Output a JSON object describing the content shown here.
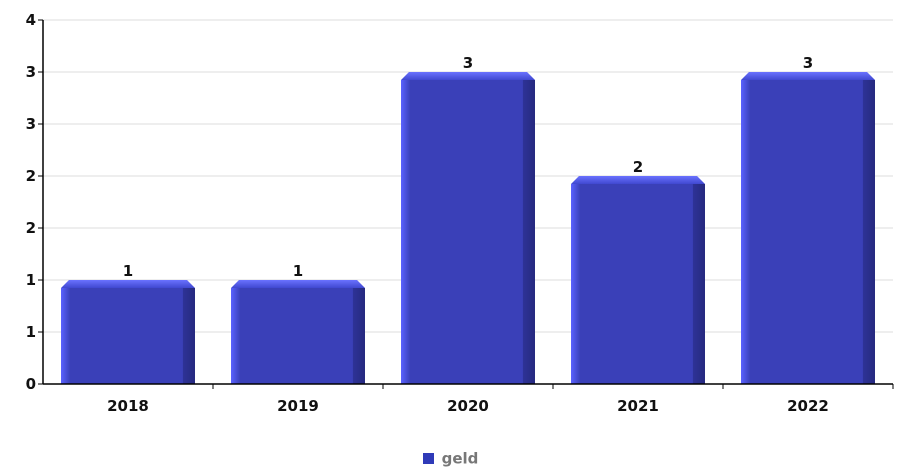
{
  "chart_data": {
    "type": "bar",
    "categories": [
      "2018",
      "2019",
      "2020",
      "2021",
      "2022"
    ],
    "series": [
      {
        "name": "geld",
        "values": [
          1,
          1,
          3,
          2,
          3
        ],
        "data_labels": [
          "1",
          "1",
          "3",
          "2",
          "3"
        ]
      }
    ],
    "y_tick_labels": [
      "0",
      "1",
      "1",
      "2",
      "2",
      "3",
      "3",
      "4"
    ],
    "ylim": [
      0,
      3.5
    ],
    "grid": true,
    "legend": "bottom-center",
    "colors": {
      "bar_main": "#3a40b8",
      "bar_highlight": "#5a62ff",
      "bar_shadow": "#262a80",
      "grid": "#dddddd",
      "axis": "#000000",
      "legend_swatch": "#2f3ab8"
    }
  },
  "legend": {
    "label": "geld"
  }
}
